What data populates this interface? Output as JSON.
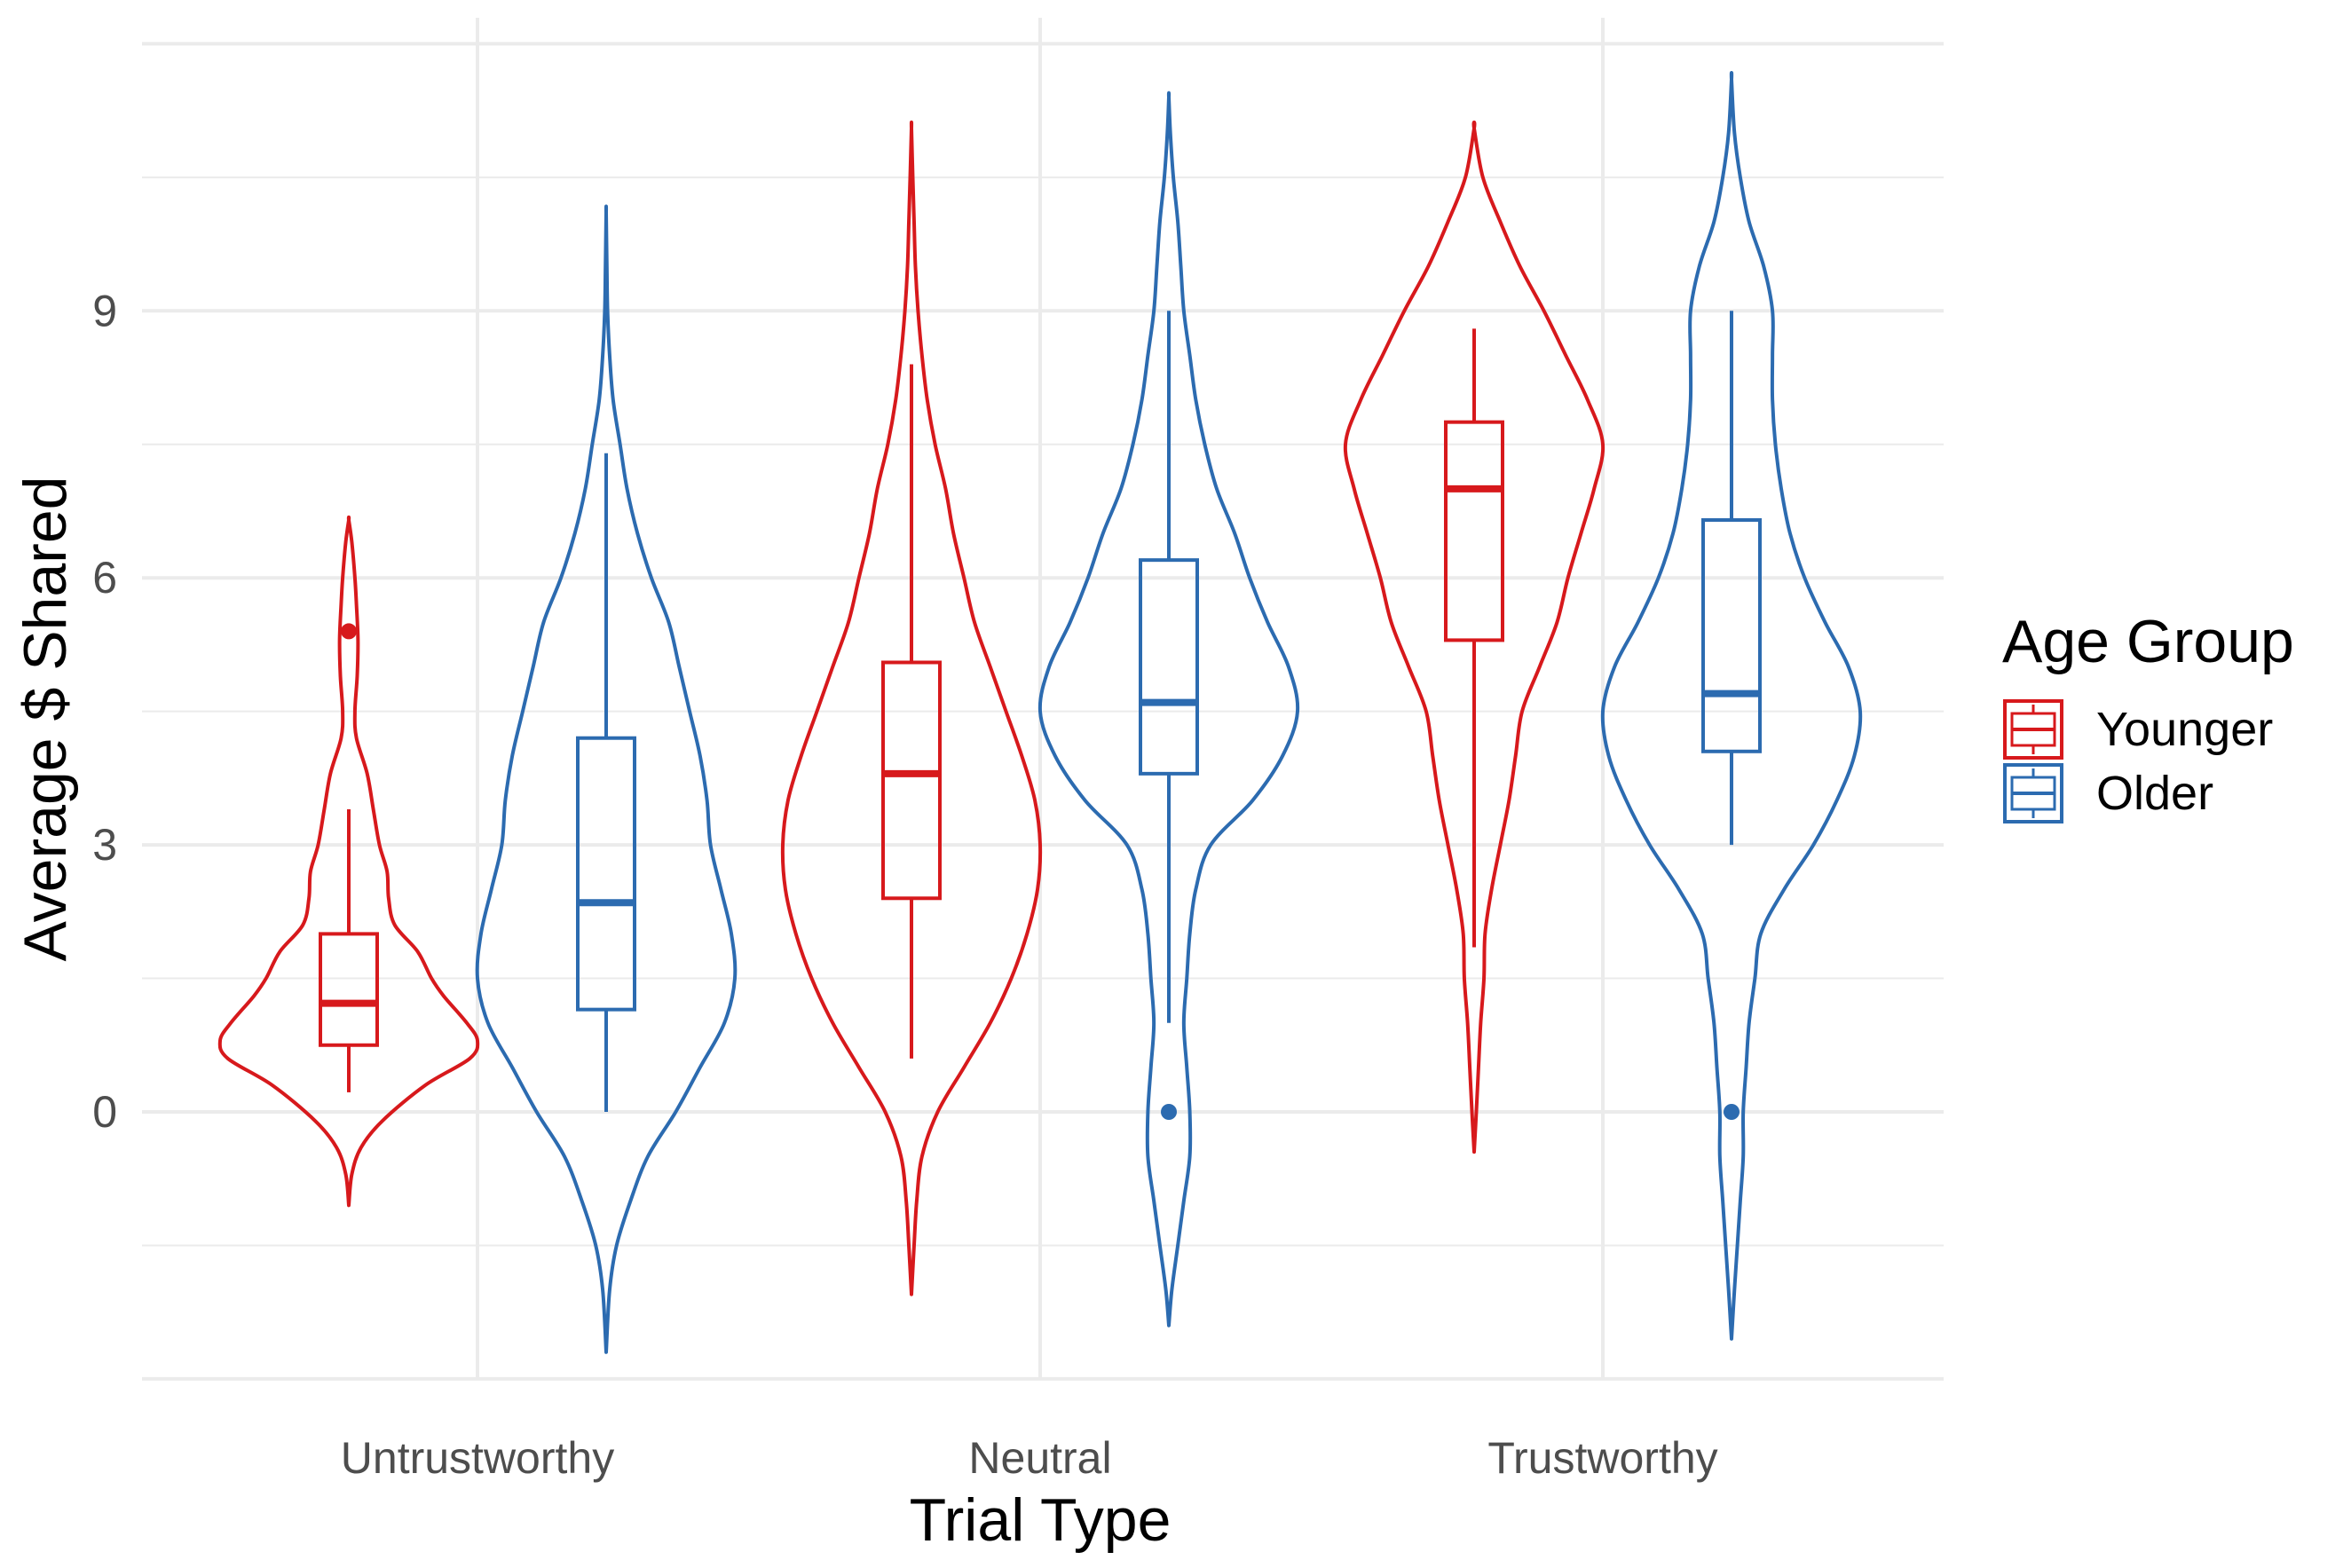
{
  "chart_data": {
    "type": "violin",
    "xlabel": "Trial Type",
    "ylabel": "Average $ Shared",
    "categories": [
      "Untrustworthy",
      "Neutral",
      "Trustworthy"
    ],
    "y_ticks": [
      0,
      3,
      6,
      9
    ],
    "ylim": [
      -3.0,
      12.1
    ],
    "grid": true,
    "legend": {
      "title": "Age Group",
      "placement": "right",
      "entries": [
        {
          "name": "Younger",
          "color": "#d7191c"
        },
        {
          "name": "Older",
          "color": "#2c6bb0"
        }
      ]
    },
    "series": [
      {
        "name": "Younger",
        "color": "#d7191c",
        "groups": [
          {
            "category": "Untrustworthy",
            "box": {
              "whisker_low": 0.22,
              "q1": 0.75,
              "median": 1.22,
              "q3": 2.0,
              "whisker_high": 3.4
            },
            "outliers": [
              5.4
            ],
            "violin": [
              [
                -1.05,
                0.0
              ],
              [
                -0.7,
                0.02
              ],
              [
                -0.4,
                0.08
              ],
              [
                -0.1,
                0.22
              ],
              [
                0.3,
                0.5
              ],
              [
                0.6,
                0.79
              ],
              [
                0.8,
                0.84
              ],
              [
                1.0,
                0.77
              ],
              [
                1.3,
                0.62
              ],
              [
                1.5,
                0.54
              ],
              [
                1.8,
                0.45
              ],
              [
                2.1,
                0.3
              ],
              [
                2.4,
                0.26
              ],
              [
                2.7,
                0.25
              ],
              [
                3.0,
                0.2
              ],
              [
                3.4,
                0.16
              ],
              [
                3.8,
                0.12
              ],
              [
                4.2,
                0.05
              ],
              [
                4.5,
                0.04
              ],
              [
                4.9,
                0.055
              ],
              [
                5.3,
                0.06
              ],
              [
                5.7,
                0.05
              ],
              [
                6.0,
                0.04
              ],
              [
                6.4,
                0.02
              ],
              [
                6.65,
                0.0
              ]
            ]
          },
          {
            "category": "Neutral",
            "box": {
              "whisker_low": 0.6,
              "q1": 2.4,
              "median": 3.8,
              "q3": 5.05,
              "whisker_high": 8.4
            },
            "outliers": [],
            "violin": [
              [
                -2.05,
                0.0
              ],
              [
                -1.5,
                0.01
              ],
              [
                -1.0,
                0.02
              ],
              [
                -0.5,
                0.04
              ],
              [
                0.0,
                0.1
              ],
              [
                0.5,
                0.2
              ],
              [
                1.0,
                0.3
              ],
              [
                1.5,
                0.38
              ],
              [
                2.0,
                0.44
              ],
              [
                2.5,
                0.48
              ],
              [
                3.0,
                0.49
              ],
              [
                3.5,
                0.47
              ],
              [
                4.0,
                0.42
              ],
              [
                4.5,
                0.36
              ],
              [
                5.0,
                0.3
              ],
              [
                5.5,
                0.24
              ],
              [
                6.0,
                0.2
              ],
              [
                6.5,
                0.16
              ],
              [
                7.0,
                0.13
              ],
              [
                7.5,
                0.09
              ],
              [
                8.0,
                0.06
              ],
              [
                8.5,
                0.04
              ],
              [
                9.0,
                0.025
              ],
              [
                9.5,
                0.015
              ],
              [
                10.0,
                0.01
              ],
              [
                10.5,
                0.005
              ],
              [
                11.05,
                0.0
              ]
            ]
          },
          {
            "category": "Trustworthy",
            "box": {
              "whisker_low": 1.85,
              "q1": 5.3,
              "median": 7.0,
              "q3": 7.75,
              "whisker_high": 8.8
            },
            "outliers": [],
            "violin": [
              [
                -0.45,
                0.0
              ],
              [
                0.0,
                0.01
              ],
              [
                0.5,
                0.02
              ],
              [
                1.0,
                0.03
              ],
              [
                1.5,
                0.045
              ],
              [
                2.0,
                0.05
              ],
              [
                2.5,
                0.08
              ],
              [
                3.0,
                0.12
              ],
              [
                3.5,
                0.16
              ],
              [
                4.0,
                0.19
              ],
              [
                4.5,
                0.22
              ],
              [
                5.0,
                0.3
              ],
              [
                5.5,
                0.38
              ],
              [
                6.0,
                0.43
              ],
              [
                6.5,
                0.49
              ],
              [
                7.0,
                0.55
              ],
              [
                7.5,
                0.59
              ],
              [
                8.0,
                0.52
              ],
              [
                8.5,
                0.42
              ],
              [
                9.0,
                0.32
              ],
              [
                9.5,
                0.21
              ],
              [
                10.0,
                0.12
              ],
              [
                10.5,
                0.04
              ],
              [
                11.05,
                0.0
              ]
            ]
          }
        ]
      },
      {
        "name": "Older",
        "color": "#2c6bb0",
        "groups": [
          {
            "category": "Untrustworthy",
            "box": {
              "whisker_low": 0.0,
              "q1": 1.15,
              "median": 2.35,
              "q3": 4.2,
              "whisker_high": 7.4
            },
            "outliers": [],
            "violin": [
              [
                -2.7,
                0.0
              ],
              [
                -2.0,
                0.01
              ],
              [
                -1.5,
                0.03
              ],
              [
                -1.0,
                0.07
              ],
              [
                -0.5,
                0.12
              ],
              [
                0.0,
                0.2
              ],
              [
                0.5,
                0.27
              ],
              [
                1.0,
                0.34
              ],
              [
                1.5,
                0.37
              ],
              [
                2.0,
                0.36
              ],
              [
                2.5,
                0.33
              ],
              [
                3.0,
                0.3
              ],
              [
                3.5,
                0.29
              ],
              [
                4.0,
                0.27
              ],
              [
                4.5,
                0.24
              ],
              [
                5.0,
                0.21
              ],
              [
                5.5,
                0.18
              ],
              [
                6.0,
                0.13
              ],
              [
                6.5,
                0.09
              ],
              [
                7.0,
                0.06
              ],
              [
                7.5,
                0.04
              ],
              [
                8.0,
                0.02
              ],
              [
                8.5,
                0.01
              ],
              [
                9.0,
                0.004
              ],
              [
                9.5,
                0.002
              ],
              [
                10.1,
                0.0
              ]
            ]
          },
          {
            "category": "Neutral",
            "box": {
              "whisker_low": 1.0,
              "q1": 3.8,
              "median": 4.6,
              "q3": 6.2,
              "whisker_high": 9.0
            },
            "outliers": [
              0.0
            ],
            "violin": [
              [
                -2.4,
                0.0
              ],
              [
                -2.0,
                0.01
              ],
              [
                -1.5,
                0.03
              ],
              [
                -1.0,
                0.05
              ],
              [
                -0.5,
                0.07
              ],
              [
                0.0,
                0.07
              ],
              [
                0.5,
                0.06
              ],
              [
                1.0,
                0.05
              ],
              [
                1.5,
                0.06
              ],
              [
                2.0,
                0.07
              ],
              [
                2.5,
                0.09
              ],
              [
                3.0,
                0.14
              ],
              [
                3.5,
                0.28
              ],
              [
                4.0,
                0.38
              ],
              [
                4.5,
                0.43
              ],
              [
                5.0,
                0.4
              ],
              [
                5.5,
                0.33
              ],
              [
                6.0,
                0.27
              ],
              [
                6.5,
                0.22
              ],
              [
                7.0,
                0.16
              ],
              [
                7.5,
                0.12
              ],
              [
                8.0,
                0.09
              ],
              [
                8.5,
                0.07
              ],
              [
                9.0,
                0.05
              ],
              [
                9.5,
                0.04
              ],
              [
                10.0,
                0.03
              ],
              [
                10.5,
                0.015
              ],
              [
                11.0,
                0.005
              ],
              [
                11.4,
                0.0
              ]
            ]
          },
          {
            "category": "Trustworthy",
            "box": {
              "whisker_low": 3.0,
              "q1": 4.05,
              "median": 4.7,
              "q3": 6.65,
              "whisker_high": 9.0
            },
            "outliers": [
              0.0
            ],
            "violin": [
              [
                -2.55,
                0.0
              ],
              [
                -2.0,
                0.01
              ],
              [
                -1.5,
                0.02
              ],
              [
                -1.0,
                0.03
              ],
              [
                -0.5,
                0.04
              ],
              [
                0.0,
                0.04
              ],
              [
                0.5,
                0.05
              ],
              [
                1.0,
                0.06
              ],
              [
                1.5,
                0.08
              ],
              [
                2.0,
                0.1
              ],
              [
                2.5,
                0.18
              ],
              [
                3.0,
                0.28
              ],
              [
                3.5,
                0.36
              ],
              [
                4.0,
                0.42
              ],
              [
                4.5,
                0.44
              ],
              [
                5.0,
                0.4
              ],
              [
                5.5,
                0.32
              ],
              [
                6.0,
                0.25
              ],
              [
                6.5,
                0.2
              ],
              [
                7.0,
                0.17
              ],
              [
                7.5,
                0.15
              ],
              [
                8.0,
                0.14
              ],
              [
                8.5,
                0.14
              ],
              [
                9.0,
                0.14
              ],
              [
                9.5,
                0.11
              ],
              [
                10.0,
                0.06
              ],
              [
                10.5,
                0.03
              ],
              [
                11.0,
                0.01
              ],
              [
                11.6,
                0.0
              ]
            ]
          }
        ]
      }
    ]
  }
}
